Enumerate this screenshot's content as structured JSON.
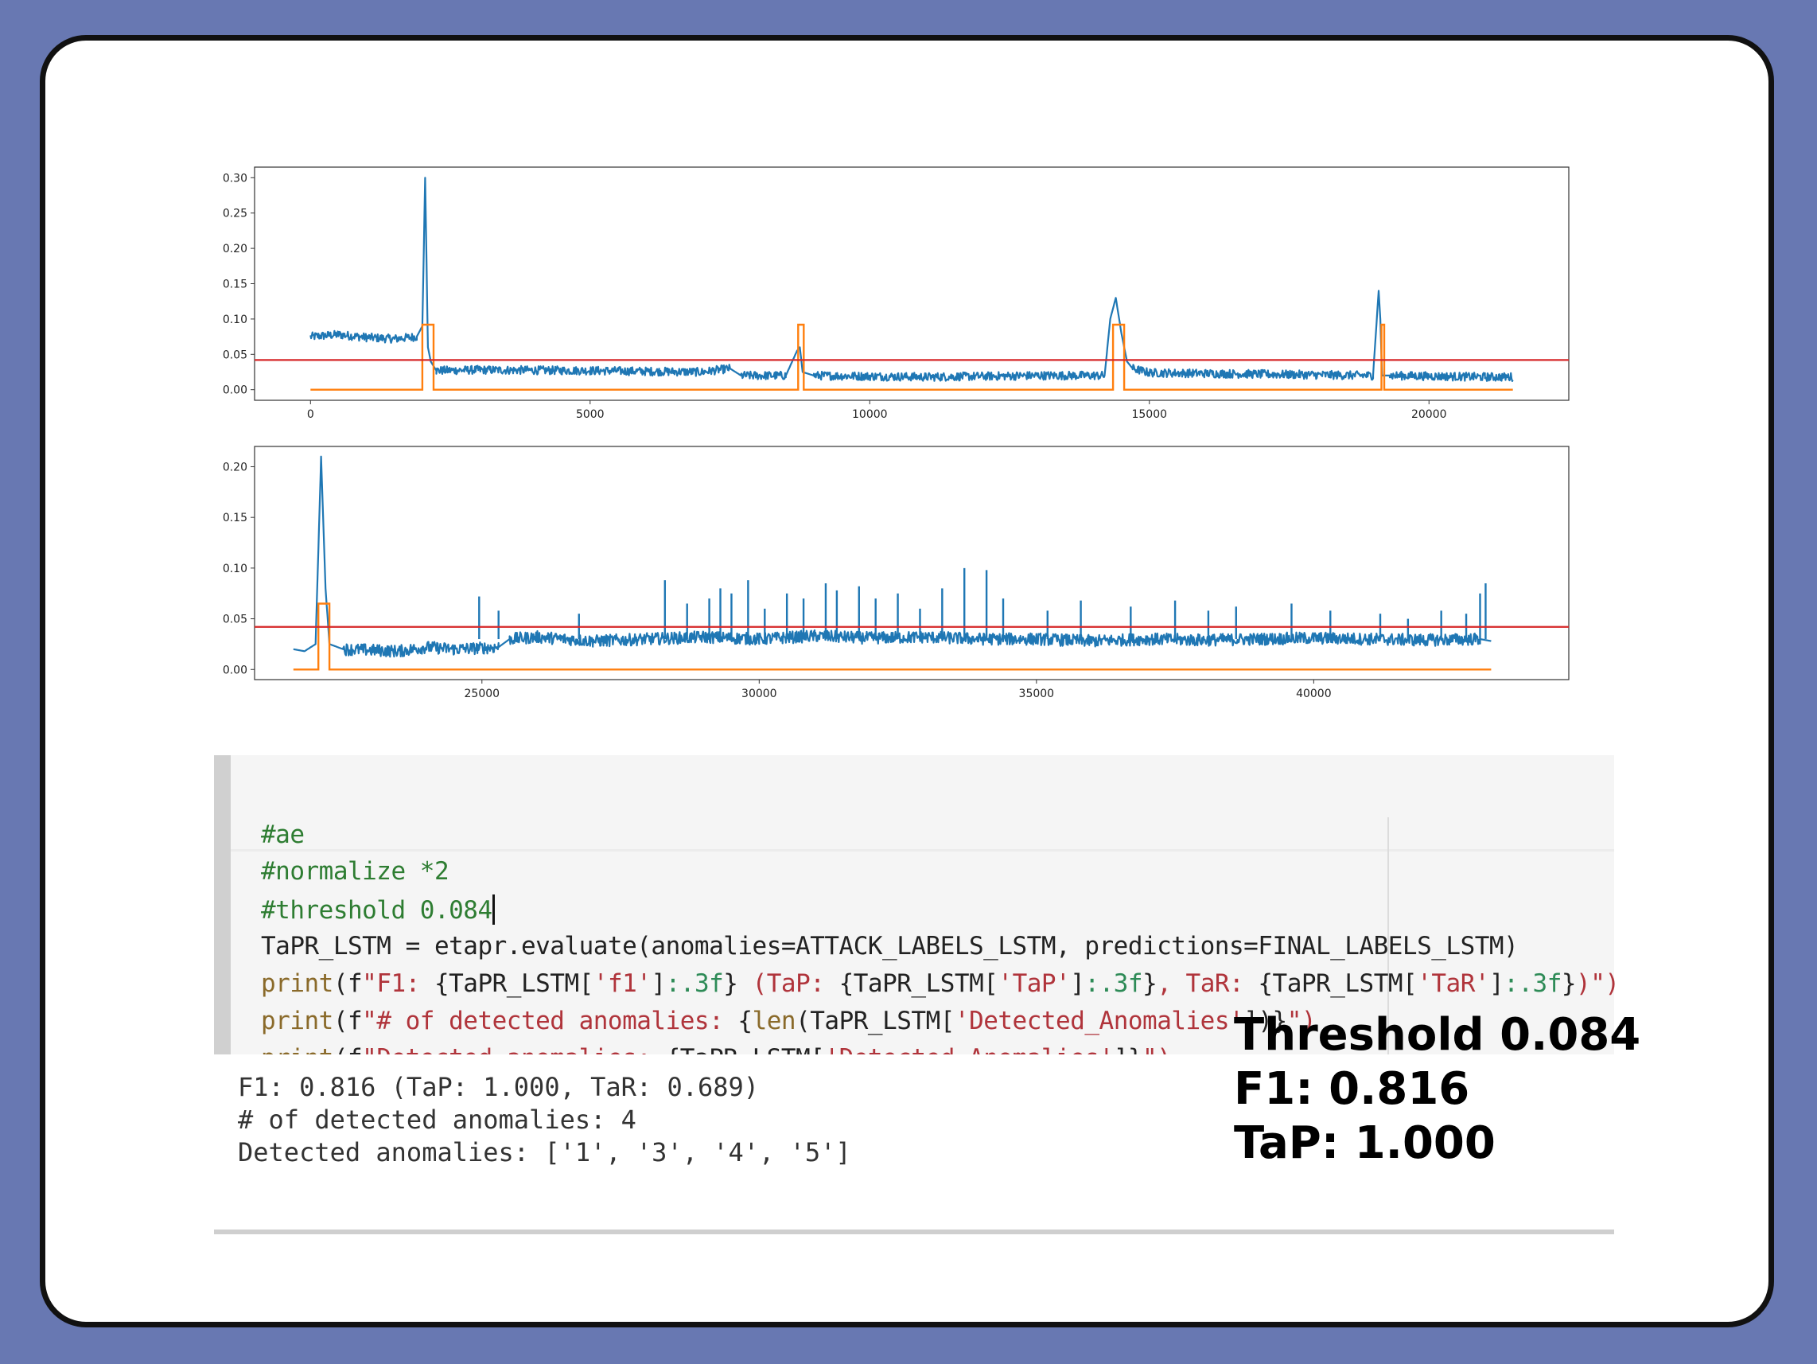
{
  "chart_data": [
    {
      "type": "line",
      "title": "",
      "xlabel": "",
      "ylabel": "",
      "xlim": [
        -1000,
        22500
      ],
      "ylim": [
        -0.015,
        0.315
      ],
      "xticks": [
        0,
        5000,
        10000,
        15000,
        20000
      ],
      "yticks": [
        0.0,
        0.05,
        0.1,
        0.15,
        0.2,
        0.25,
        0.3
      ],
      "xtick_labels": [
        "0",
        "5000",
        "10000",
        "15000",
        "20000"
      ],
      "ytick_labels": [
        "0.00",
        "0.05",
        "0.10",
        "0.15",
        "0.20",
        "0.25",
        "0.30"
      ],
      "threshold": 0.042,
      "series": [
        {
          "color": "#1f77b4",
          "x": [
            0,
            500,
            1000,
            1500,
            1900,
            2000,
            2050,
            2100,
            2150,
            2250,
            3000,
            5000,
            7000,
            7500,
            7700,
            8500,
            8700,
            8750,
            8800,
            9000,
            11000,
            13000,
            14200,
            14300,
            14400,
            14500,
            14600,
            14700,
            15000,
            17000,
            19000,
            19100,
            19130,
            19160,
            19300,
            21000,
            21500
          ],
          "y": [
            0.075,
            0.078,
            0.074,
            0.072,
            0.075,
            0.09,
            0.3,
            0.06,
            0.04,
            0.027,
            0.028,
            0.027,
            0.025,
            0.03,
            0.02,
            0.02,
            0.055,
            0.06,
            0.025,
            0.02,
            0.018,
            0.02,
            0.02,
            0.1,
            0.13,
            0.08,
            0.04,
            0.03,
            0.024,
            0.022,
            0.02,
            0.14,
            0.1,
            0.02,
            0.02,
            0.018,
            0.018
          ]
        },
        {
          "color": "#ff7f0e",
          "x": [
            0,
            2000,
            2000,
            2200,
            2200,
            8720,
            8720,
            8820,
            8820,
            14350,
            14350,
            14550,
            14550,
            19150,
            19150,
            19200,
            19200,
            21500
          ],
          "y": [
            0,
            0,
            0.092,
            0.092,
            0,
            0,
            0.092,
            0.092,
            0,
            0,
            0.092,
            0.092,
            0,
            0,
            0.092,
            0.092,
            0,
            0
          ]
        }
      ]
    },
    {
      "type": "line",
      "title": "",
      "xlabel": "",
      "ylabel": "",
      "xlim": [
        20900,
        44600
      ],
      "ylim": [
        -0.01,
        0.22
      ],
      "xticks": [
        25000,
        30000,
        35000,
        40000
      ],
      "yticks": [
        0.0,
        0.05,
        0.1,
        0.15,
        0.2
      ],
      "xtick_labels": [
        "25000",
        "30000",
        "35000",
        "40000"
      ],
      "ytick_labels": [
        "0.00",
        "0.05",
        "0.10",
        "0.15",
        "0.20"
      ],
      "threshold": 0.042,
      "series": [
        {
          "color": "#1f77b4",
          "x": [
            21600,
            21800,
            22000,
            22100,
            22180,
            22250,
            22500,
            23500,
            24000,
            24500,
            25300,
            25500,
            26000,
            27000,
            28000,
            29000,
            30000,
            31000,
            32000,
            33000,
            34000,
            35000,
            36000,
            37000,
            38000,
            39000,
            40000,
            41000,
            42000,
            43000,
            43200
          ],
          "y": [
            0.02,
            0.018,
            0.025,
            0.21,
            0.08,
            0.025,
            0.02,
            0.018,
            0.022,
            0.02,
            0.022,
            0.03,
            0.032,
            0.028,
            0.03,
            0.032,
            0.03,
            0.033,
            0.031,
            0.032,
            0.03,
            0.03,
            0.028,
            0.03,
            0.029,
            0.03,
            0.031,
            0.03,
            0.029,
            0.03,
            0.028
          ]
        },
        {
          "color": "#ff7f0e",
          "x": [
            21600,
            22050,
            22050,
            22250,
            22250,
            43200
          ],
          "y": [
            0,
            0,
            0.065,
            0.065,
            0,
            0
          ]
        }
      ],
      "spikes": [
        {
          "x": 24950,
          "y": 0.072
        },
        {
          "x": 25300,
          "y": 0.058
        },
        {
          "x": 26750,
          "y": 0.055
        },
        {
          "x": 28300,
          "y": 0.088
        },
        {
          "x": 28700,
          "y": 0.065
        },
        {
          "x": 29100,
          "y": 0.07
        },
        {
          "x": 29300,
          "y": 0.08
        },
        {
          "x": 29500,
          "y": 0.075
        },
        {
          "x": 29800,
          "y": 0.088
        },
        {
          "x": 30100,
          "y": 0.06
        },
        {
          "x": 30500,
          "y": 0.075
        },
        {
          "x": 30800,
          "y": 0.07
        },
        {
          "x": 31200,
          "y": 0.085
        },
        {
          "x": 31400,
          "y": 0.078
        },
        {
          "x": 31800,
          "y": 0.082
        },
        {
          "x": 32100,
          "y": 0.07
        },
        {
          "x": 32500,
          "y": 0.075
        },
        {
          "x": 32900,
          "y": 0.06
        },
        {
          "x": 33300,
          "y": 0.08
        },
        {
          "x": 33700,
          "y": 0.1
        },
        {
          "x": 34100,
          "y": 0.098
        },
        {
          "x": 34400,
          "y": 0.07
        },
        {
          "x": 35200,
          "y": 0.058
        },
        {
          "x": 35800,
          "y": 0.068
        },
        {
          "x": 36700,
          "y": 0.062
        },
        {
          "x": 37500,
          "y": 0.068
        },
        {
          "x": 38100,
          "y": 0.058
        },
        {
          "x": 38600,
          "y": 0.062
        },
        {
          "x": 39600,
          "y": 0.065
        },
        {
          "x": 40300,
          "y": 0.058
        },
        {
          "x": 41200,
          "y": 0.055
        },
        {
          "x": 41700,
          "y": 0.05
        },
        {
          "x": 42300,
          "y": 0.058
        },
        {
          "x": 42750,
          "y": 0.055
        },
        {
          "x": 43000,
          "y": 0.075
        },
        {
          "x": 43100,
          "y": 0.085
        }
      ]
    }
  ],
  "colors": {
    "signal": "#1f77b4",
    "label": "#ff7f0e",
    "threshold": "#d62728",
    "slide_bg": "#6878b2"
  },
  "code": {
    "lines": [
      [
        {
          "t": "#ae",
          "c": "c-comment"
        }
      ],
      [
        {
          "t": "#normalize *2",
          "c": "c-comment"
        }
      ],
      [
        {
          "t": "#threshold 0.084",
          "c": "c-comment"
        }
      ],
      [
        {
          "t": "TaPR_LSTM = etapr.evaluate(anomalies=ATTACK_LABELS_LSTM, predictions=FINAL_LABELS_LSTM)",
          "c": "c-name"
        }
      ],
      [
        {
          "t": "print",
          "c": "c-kw"
        },
        {
          "t": "(f",
          "c": "c-name"
        },
        {
          "t": "\"F1: ",
          "c": "c-str"
        },
        {
          "t": "{TaPR_LSTM[",
          "c": "c-name"
        },
        {
          "t": "'f1'",
          "c": "c-str"
        },
        {
          "t": "]",
          "c": "c-name"
        },
        {
          "t": ":.3f",
          "c": "c-fmt"
        },
        {
          "t": "} ",
          "c": "c-name"
        },
        {
          "t": "(TaP: ",
          "c": "c-str"
        },
        {
          "t": "{TaPR_LSTM[",
          "c": "c-name"
        },
        {
          "t": "'TaP'",
          "c": "c-str"
        },
        {
          "t": "]",
          "c": "c-name"
        },
        {
          "t": ":.3f",
          "c": "c-fmt"
        },
        {
          "t": "}",
          "c": "c-name"
        },
        {
          "t": ", TaR: ",
          "c": "c-str"
        },
        {
          "t": "{TaPR_LSTM[",
          "c": "c-name"
        },
        {
          "t": "'TaR'",
          "c": "c-str"
        },
        {
          "t": "]",
          "c": "c-name"
        },
        {
          "t": ":.3f",
          "c": "c-fmt"
        },
        {
          "t": "}",
          "c": "c-name"
        },
        {
          "t": ")\")",
          "c": "c-str"
        }
      ],
      [
        {
          "t": "print",
          "c": "c-kw"
        },
        {
          "t": "(f",
          "c": "c-name"
        },
        {
          "t": "\"# of detected anomalies: ",
          "c": "c-str"
        },
        {
          "t": "{",
          "c": "c-name"
        },
        {
          "t": "len",
          "c": "c-kw"
        },
        {
          "t": "(TaPR_LSTM[",
          "c": "c-name"
        },
        {
          "t": "'Detected_Anomalies'",
          "c": "c-str"
        },
        {
          "t": "])}",
          "c": "c-name"
        },
        {
          "t": "\")",
          "c": "c-str"
        }
      ],
      [
        {
          "t": "print",
          "c": "c-kw"
        },
        {
          "t": "(f",
          "c": "c-name"
        },
        {
          "t": "\"Detected anomalies: ",
          "c": "c-str"
        },
        {
          "t": "{TaPR_LSTM[",
          "c": "c-name"
        },
        {
          "t": "'Detected_Anomalies'",
          "c": "c-str"
        },
        {
          "t": "]}",
          "c": "c-name"
        },
        {
          "t": "\")",
          "c": "c-str"
        }
      ]
    ]
  },
  "output": {
    "line1": "F1: 0.816 (TaP: 1.000, TaR: 0.689)",
    "line2": "# of detected anomalies: 4",
    "line3": "Detected anomalies: ['1', '3', '4', '5']"
  },
  "annotation": {
    "line1": "Threshold 0.084",
    "line2": "F1: 0.816",
    "line3": "TaP: 1.000"
  }
}
